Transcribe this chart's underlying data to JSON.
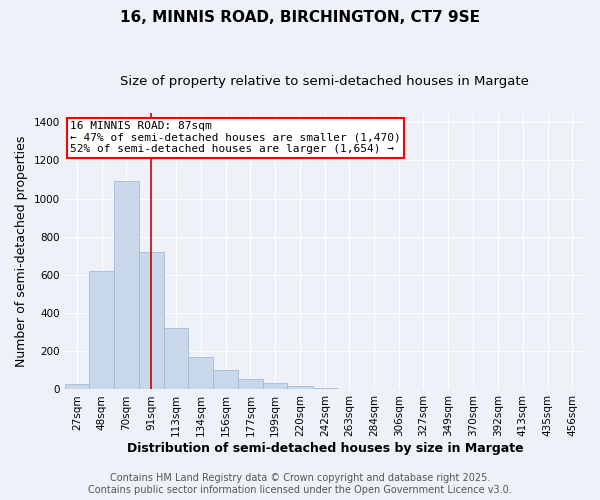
{
  "title": "16, MINNIS ROAD, BIRCHINGTON, CT7 9SE",
  "subtitle": "Size of property relative to semi-detached houses in Margate",
  "xlabel": "Distribution of semi-detached houses by size in Margate",
  "ylabel": "Number of semi-detached properties",
  "footer_line1": "Contains HM Land Registry data © Crown copyright and database right 2025.",
  "footer_line2": "Contains public sector information licensed under the Open Government Licence v3.0.",
  "annotation_title": "16 MINNIS ROAD: 87sqm",
  "annotation_line2": "← 47% of semi-detached houses are smaller (1,470)",
  "annotation_line3": "52% of semi-detached houses are larger (1,654) →",
  "bar_color": "#c8d8ea",
  "bar_edge_color": "#9ab4cc",
  "vline_color": "#cc0000",
  "vline_position": 91,
  "categories": [
    "27sqm",
    "48sqm",
    "70sqm",
    "91sqm",
    "113sqm",
    "134sqm",
    "156sqm",
    "177sqm",
    "199sqm",
    "220sqm",
    "242sqm",
    "263sqm",
    "284sqm",
    "306sqm",
    "327sqm",
    "349sqm",
    "370sqm",
    "392sqm",
    "413sqm",
    "435sqm",
    "456sqm"
  ],
  "bin_edges": [
    16,
    37,
    59,
    80,
    102,
    123,
    145,
    166,
    188,
    209,
    231,
    252,
    273,
    295,
    316,
    338,
    359,
    381,
    402,
    424,
    445,
    467
  ],
  "values": [
    30,
    620,
    1090,
    720,
    320,
    170,
    100,
    55,
    32,
    18,
    10,
    5,
    0,
    0,
    0,
    0,
    0,
    0,
    0,
    0,
    0
  ],
  "ylim": [
    0,
    1450
  ],
  "yticks": [
    0,
    200,
    400,
    600,
    800,
    1000,
    1200,
    1400
  ],
  "background_color": "#eef2f8",
  "grid_color": "#ffffff",
  "title_fontsize": 11,
  "subtitle_fontsize": 9.5,
  "axis_label_fontsize": 9,
  "tick_fontsize": 7.5,
  "footer_fontsize": 7,
  "annotation_fontsize": 8
}
